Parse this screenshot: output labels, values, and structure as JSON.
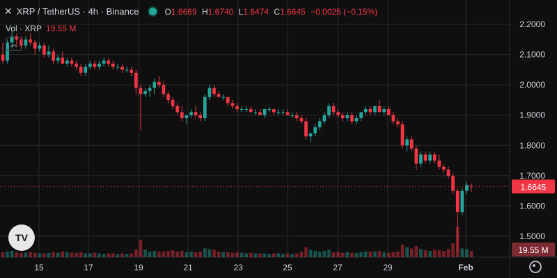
{
  "header": {
    "symbol_line": "XRP / TetherUS · 4h · Binance",
    "open_label": "O",
    "open": "1.6669",
    "high_label": "H",
    "high": "1.6740",
    "low_label": "L",
    "low": "1.6474",
    "close_label": "C",
    "close": "1.6645",
    "change": "−0.0025 (−0.15%)"
  },
  "volume_legend": {
    "label": "Vol · XRP",
    "value": "19.55 M"
  },
  "colors": {
    "up": "#26a69a",
    "down": "#f23645",
    "background": "#0f0f0f",
    "grid": "#2a2a2a"
  },
  "icons": {
    "collapse": "chevron-up-icon",
    "logo": "tradingview-logo-icon",
    "settings": "gear-icon",
    "close": "close-icon"
  },
  "logo_text": "TV",
  "chart_data": {
    "type": "candlestick",
    "ylim": [
      1.43,
      2.23
    ],
    "y_ticks": [
      "2.2000",
      "2.1000",
      "2.0000",
      "1.9000",
      "1.8000",
      "1.7000",
      "1.6000",
      "1.5000"
    ],
    "x_tick_labels": [
      "15",
      "17",
      "19",
      "21",
      "23",
      "25",
      "27",
      "29",
      "Feb"
    ],
    "price_label": "1.6645",
    "volume_label": "19.55 M",
    "grid": true,
    "candles": [
      [
        2.1,
        2.14,
        2.07,
        2.08
      ],
      [
        2.08,
        2.15,
        2.07,
        2.14
      ],
      [
        2.14,
        2.18,
        2.12,
        2.16
      ],
      [
        2.16,
        2.17,
        2.13,
        2.15
      ],
      [
        2.15,
        2.16,
        2.12,
        2.13
      ],
      [
        2.13,
        2.16,
        2.12,
        2.15
      ],
      [
        2.15,
        2.17,
        2.13,
        2.14
      ],
      [
        2.14,
        2.15,
        2.1,
        2.12
      ],
      [
        2.12,
        2.14,
        2.11,
        2.13
      ],
      [
        2.13,
        2.14,
        2.09,
        2.1
      ],
      [
        2.1,
        2.13,
        2.09,
        2.11
      ],
      [
        2.11,
        2.12,
        2.07,
        2.08
      ],
      [
        2.08,
        2.1,
        2.07,
        2.09
      ],
      [
        2.09,
        2.11,
        2.07,
        2.07
      ],
      [
        2.07,
        2.09,
        2.06,
        2.08
      ],
      [
        2.08,
        2.09,
        2.06,
        2.07
      ],
      [
        2.07,
        2.08,
        2.05,
        2.06
      ],
      [
        2.06,
        2.07,
        2.03,
        2.04
      ],
      [
        2.04,
        2.07,
        2.03,
        2.06
      ],
      [
        2.06,
        2.08,
        2.05,
        2.07
      ],
      [
        2.07,
        2.08,
        2.05,
        2.06
      ],
      [
        2.06,
        2.08,
        2.05,
        2.07
      ],
      [
        2.07,
        2.09,
        2.06,
        2.08
      ],
      [
        2.08,
        2.09,
        2.06,
        2.07
      ],
      [
        2.07,
        2.08,
        2.05,
        2.06
      ],
      [
        2.06,
        2.07,
        2.05,
        2.06
      ],
      [
        2.06,
        2.07,
        2.04,
        2.05
      ],
      [
        2.05,
        2.06,
        2.04,
        2.05
      ],
      [
        2.05,
        2.06,
        2.03,
        2.04
      ],
      [
        2.04,
        2.05,
        1.97,
        1.99
      ],
      [
        1.99,
        2.0,
        1.85,
        1.97
      ],
      [
        1.97,
        1.99,
        1.96,
        1.98
      ],
      [
        1.98,
        2.0,
        1.96,
        1.99
      ],
      [
        1.99,
        2.02,
        1.97,
        2.01
      ],
      [
        2.01,
        2.03,
        1.99,
        2.0
      ],
      [
        2.0,
        2.01,
        1.96,
        1.97
      ],
      [
        1.97,
        1.98,
        1.94,
        1.95
      ],
      [
        1.95,
        1.96,
        1.92,
        1.93
      ],
      [
        1.93,
        1.94,
        1.9,
        1.91
      ],
      [
        1.91,
        1.93,
        1.88,
        1.89
      ],
      [
        1.89,
        1.9,
        1.87,
        1.9
      ],
      [
        1.9,
        1.92,
        1.89,
        1.91
      ],
      [
        1.91,
        1.93,
        1.89,
        1.9
      ],
      [
        1.9,
        1.91,
        1.88,
        1.89
      ],
      [
        1.89,
        1.97,
        1.88,
        1.96
      ],
      [
        1.96,
        2.0,
        1.95,
        1.99
      ],
      [
        1.99,
        2.0,
        1.96,
        1.97
      ],
      [
        1.97,
        1.98,
        1.96,
        1.96
      ],
      [
        1.96,
        1.97,
        1.95,
        1.96
      ],
      [
        1.96,
        1.96,
        1.93,
        1.94
      ],
      [
        1.94,
        1.95,
        1.92,
        1.93
      ],
      [
        1.93,
        1.94,
        1.91,
        1.92
      ],
      [
        1.92,
        1.93,
        1.91,
        1.92
      ],
      [
        1.92,
        1.93,
        1.91,
        1.92
      ],
      [
        1.92,
        1.93,
        1.91,
        1.91
      ],
      [
        1.91,
        1.92,
        1.9,
        1.91
      ],
      [
        1.91,
        1.92,
        1.9,
        1.9
      ],
      [
        1.9,
        1.92,
        1.89,
        1.92
      ],
      [
        1.92,
        1.93,
        1.91,
        1.92
      ],
      [
        1.92,
        1.92,
        1.9,
        1.91
      ],
      [
        1.91,
        1.92,
        1.9,
        1.91
      ],
      [
        1.91,
        1.92,
        1.9,
        1.91
      ],
      [
        1.91,
        1.92,
        1.9,
        1.9
      ],
      [
        1.9,
        1.91,
        1.89,
        1.9
      ],
      [
        1.9,
        1.91,
        1.88,
        1.89
      ],
      [
        1.89,
        1.9,
        1.87,
        1.88
      ],
      [
        1.88,
        1.89,
        1.82,
        1.83
      ],
      [
        1.83,
        1.84,
        1.81,
        1.84
      ],
      [
        1.84,
        1.87,
        1.83,
        1.86
      ],
      [
        1.86,
        1.89,
        1.85,
        1.88
      ],
      [
        1.88,
        1.91,
        1.87,
        1.9
      ],
      [
        1.9,
        1.94,
        1.89,
        1.93
      ],
      [
        1.93,
        1.94,
        1.9,
        1.91
      ],
      [
        1.91,
        1.92,
        1.89,
        1.9
      ],
      [
        1.9,
        1.91,
        1.88,
        1.89
      ],
      [
        1.89,
        1.91,
        1.88,
        1.9
      ],
      [
        1.9,
        1.91,
        1.87,
        1.88
      ],
      [
        1.88,
        1.9,
        1.87,
        1.89
      ],
      [
        1.89,
        1.91,
        1.88,
        1.91
      ],
      [
        1.91,
        1.93,
        1.9,
        1.92
      ],
      [
        1.92,
        1.93,
        1.9,
        1.91
      ],
      [
        1.91,
        1.93,
        1.9,
        1.93
      ],
      [
        1.93,
        1.95,
        1.91,
        1.91
      ],
      [
        1.91,
        1.93,
        1.9,
        1.92
      ],
      [
        1.92,
        1.93,
        1.9,
        1.9
      ],
      [
        1.9,
        1.91,
        1.87,
        1.88
      ],
      [
        1.88,
        1.89,
        1.86,
        1.87
      ],
      [
        1.87,
        1.88,
        1.79,
        1.8
      ],
      [
        1.8,
        1.83,
        1.78,
        1.82
      ],
      [
        1.82,
        1.83,
        1.78,
        1.79
      ],
      [
        1.79,
        1.8,
        1.72,
        1.74
      ],
      [
        1.74,
        1.78,
        1.73,
        1.77
      ],
      [
        1.77,
        1.78,
        1.74,
        1.75
      ],
      [
        1.75,
        1.78,
        1.74,
        1.77
      ],
      [
        1.77,
        1.78,
        1.74,
        1.75
      ],
      [
        1.75,
        1.77,
        1.72,
        1.73
      ],
      [
        1.73,
        1.74,
        1.71,
        1.72
      ],
      [
        1.72,
        1.73,
        1.69,
        1.7
      ],
      [
        1.7,
        1.71,
        1.64,
        1.65
      ],
      [
        1.65,
        1.66,
        1.45,
        1.58
      ],
      [
        1.58,
        1.66,
        1.57,
        1.65
      ],
      [
        1.65,
        1.68,
        1.64,
        1.67
      ],
      [
        1.6669,
        1.674,
        1.6474,
        1.6645
      ]
    ],
    "volumes": [
      8,
      9,
      10,
      8,
      7,
      7,
      8,
      7,
      6,
      6,
      7,
      8,
      7,
      9,
      8,
      7,
      7,
      8,
      6,
      6,
      7,
      6,
      5,
      6,
      6,
      5,
      6,
      5,
      6,
      12,
      28,
      12,
      9,
      10,
      9,
      9,
      10,
      11,
      9,
      10,
      8,
      9,
      8,
      9,
      14,
      13,
      12,
      9,
      8,
      8,
      7,
      8,
      7,
      6,
      7,
      6,
      6,
      6,
      5,
      6,
      6,
      5,
      6,
      5,
      6,
      8,
      16,
      12,
      10,
      9,
      10,
      12,
      8,
      8,
      7,
      8,
      7,
      7,
      8,
      9,
      9,
      9,
      10,
      8,
      7,
      8,
      9,
      20,
      16,
      14,
      18,
      13,
      11,
      10,
      12,
      11,
      10,
      13,
      22,
      48,
      14,
      13,
      10
    ]
  }
}
